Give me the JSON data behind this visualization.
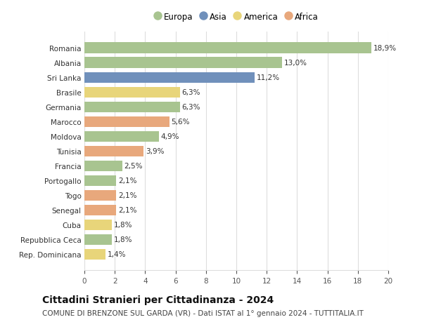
{
  "countries": [
    "Romania",
    "Albania",
    "Sri Lanka",
    "Brasile",
    "Germania",
    "Marocco",
    "Moldova",
    "Tunisia",
    "Francia",
    "Portogallo",
    "Togo",
    "Senegal",
    "Cuba",
    "Repubblica Ceca",
    "Rep. Dominicana"
  ],
  "values": [
    18.9,
    13.0,
    11.2,
    6.3,
    6.3,
    5.6,
    4.9,
    3.9,
    2.5,
    2.1,
    2.1,
    2.1,
    1.8,
    1.8,
    1.4
  ],
  "labels": [
    "18,9%",
    "13,0%",
    "11,2%",
    "6,3%",
    "6,3%",
    "5,6%",
    "4,9%",
    "3,9%",
    "2,5%",
    "2,1%",
    "2,1%",
    "2,1%",
    "1,8%",
    "1,8%",
    "1,4%"
  ],
  "continents": [
    "Europa",
    "Europa",
    "Asia",
    "America",
    "Europa",
    "Africa",
    "Europa",
    "Africa",
    "Europa",
    "Europa",
    "Africa",
    "Africa",
    "America",
    "Europa",
    "America"
  ],
  "colors": {
    "Europa": "#a8c490",
    "Asia": "#7090bb",
    "America": "#e8d57a",
    "Africa": "#e8a87c"
  },
  "legend_order": [
    "Europa",
    "Asia",
    "America",
    "Africa"
  ],
  "title1": "Cittadini Stranieri per Cittadinanza - 2024",
  "title2": "COMUNE DI BRENZONE SUL GARDA (VR) - Dati ISTAT al 1° gennaio 2024 - TUTTITALIA.IT",
  "xlim": [
    0,
    20
  ],
  "xticks": [
    0,
    2,
    4,
    6,
    8,
    10,
    12,
    14,
    16,
    18,
    20
  ],
  "background_color": "#ffffff",
  "grid_color": "#dddddd",
  "bar_height": 0.72,
  "label_fontsize": 7.5,
  "tick_fontsize": 7.5,
  "title1_fontsize": 10,
  "title2_fontsize": 7.5
}
